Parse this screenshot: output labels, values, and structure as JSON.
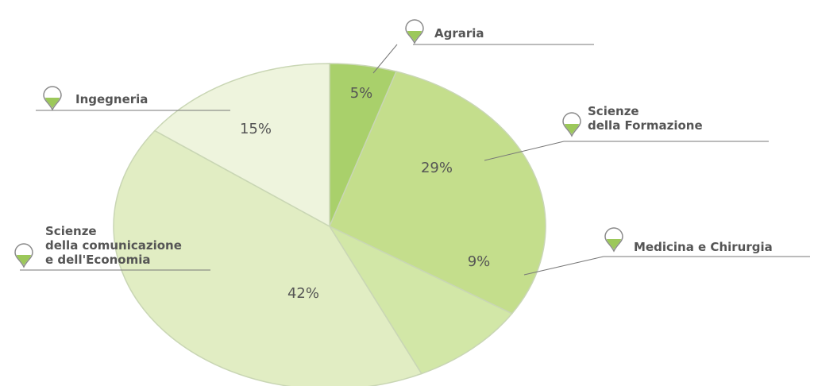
{
  "chart_data": {
    "type": "pie",
    "categories": [
      "Agraria",
      "Scienze\ndella Formazione",
      "Medicina e Chirurgia",
      "Scienze\ndella comunicazione\ne dell'Economia",
      "Ingegneria"
    ],
    "values": [
      5,
      29,
      9,
      42,
      15
    ],
    "value_labels": [
      "5%",
      "29%",
      "9%",
      "42%",
      "15%"
    ],
    "colors": [
      "#a9d06b",
      "#c4de8c",
      "#d2e7a7",
      "#e1edc3",
      "#eef4dd"
    ]
  }
}
